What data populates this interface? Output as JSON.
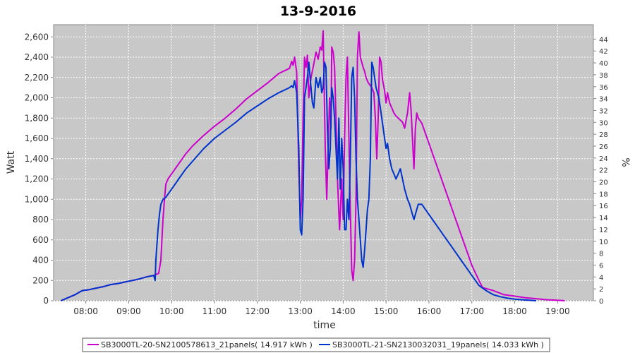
{
  "chart_data": {
    "type": "line",
    "title": "13-9-2016",
    "xlabel": "time",
    "ylabel": "Watt",
    "y2label": "%",
    "xlim": [
      "07:15",
      "19:50"
    ],
    "ylim": [
      0,
      2720
    ],
    "y2lim": [
      0,
      46.42
    ],
    "grid": true,
    "legend_position": "bottom",
    "x_ticks": [
      "08:00",
      "09:00",
      "10:00",
      "11:00",
      "12:00",
      "13:00",
      "14:00",
      "15:00",
      "16:00",
      "17:00",
      "18:00",
      "19:00"
    ],
    "y_ticks": [
      "0",
      "200",
      "400",
      "600",
      "800",
      "1,000",
      "1,200",
      "1,400",
      "1,600",
      "1,800",
      "2,000",
      "2,200",
      "2,400",
      "2,600"
    ],
    "y2_ticks": [
      "0",
      "2",
      "4",
      "6",
      "8",
      "10",
      "12",
      "14",
      "16",
      "18",
      "20",
      "22",
      "24",
      "26",
      "28",
      "30",
      "32",
      "34",
      "36",
      "38",
      "40",
      "42",
      "44"
    ],
    "series": [
      {
        "name": "SB3000TL-20-SN2100578613_21panels( 14.917 kWh )",
        "color": "#cc00cc",
        "points": [
          [
            "07:25",
            0
          ],
          [
            "07:35",
            30
          ],
          [
            "07:45",
            60
          ],
          [
            "07:55",
            100
          ],
          [
            "08:05",
            110
          ],
          [
            "08:15",
            125
          ],
          [
            "08:25",
            140
          ],
          [
            "08:35",
            160
          ],
          [
            "08:45",
            170
          ],
          [
            "08:55",
            185
          ],
          [
            "09:05",
            200
          ],
          [
            "09:15",
            215
          ],
          [
            "09:25",
            235
          ],
          [
            "09:35",
            250
          ],
          [
            "09:42",
            270
          ],
          [
            "09:45",
            400
          ],
          [
            "09:48",
            800
          ],
          [
            "09:50",
            1000
          ],
          [
            "09:52",
            1150
          ],
          [
            "09:55",
            1200
          ],
          [
            "10:00",
            1250
          ],
          [
            "10:10",
            1350
          ],
          [
            "10:20",
            1450
          ],
          [
            "10:30",
            1530
          ],
          [
            "10:45",
            1630
          ],
          [
            "11:00",
            1720
          ],
          [
            "11:15",
            1800
          ],
          [
            "11:30",
            1890
          ],
          [
            "11:45",
            1990
          ],
          [
            "12:00",
            2070
          ],
          [
            "12:15",
            2150
          ],
          [
            "12:30",
            2240
          ],
          [
            "12:45",
            2290
          ],
          [
            "12:48",
            2360
          ],
          [
            "12:50",
            2320
          ],
          [
            "12:52",
            2400
          ],
          [
            "12:55",
            2250
          ],
          [
            "12:58",
            1300
          ],
          [
            "13:00",
            800
          ],
          [
            "13:02",
            1000
          ],
          [
            "13:04",
            1800
          ],
          [
            "13:06",
            2400
          ],
          [
            "13:08",
            2300
          ],
          [
            "13:10",
            2420
          ],
          [
            "13:12",
            2000
          ],
          [
            "13:15",
            2200
          ],
          [
            "13:18",
            2300
          ],
          [
            "13:22",
            2450
          ],
          [
            "13:25",
            2380
          ],
          [
            "13:28",
            2500
          ],
          [
            "13:30",
            2470
          ],
          [
            "13:32",
            2660
          ],
          [
            "13:35",
            1500
          ],
          [
            "13:37",
            1000
          ],
          [
            "13:39",
            1500
          ],
          [
            "13:41",
            2000
          ],
          [
            "13:43",
            1700
          ],
          [
            "13:44",
            2500
          ],
          [
            "13:46",
            2450
          ],
          [
            "13:48",
            2300
          ],
          [
            "13:50",
            1800
          ],
          [
            "13:52",
            1200
          ],
          [
            "13:55",
            700
          ],
          [
            "13:58",
            1200
          ],
          [
            "14:00",
            800
          ],
          [
            "14:02",
            1600
          ],
          [
            "14:04",
            2200
          ],
          [
            "14:06",
            2400
          ],
          [
            "14:08",
            1600
          ],
          [
            "14:10",
            900
          ],
          [
            "14:12",
            300
          ],
          [
            "14:14",
            200
          ],
          [
            "14:16",
            400
          ],
          [
            "14:18",
            1000
          ],
          [
            "14:20",
            2400
          ],
          [
            "14:22",
            2650
          ],
          [
            "14:24",
            2400
          ],
          [
            "14:26",
            2350
          ],
          [
            "14:28",
            2300
          ],
          [
            "14:30",
            2260
          ],
          [
            "14:32",
            2200
          ],
          [
            "14:35",
            2150
          ],
          [
            "14:40",
            2100
          ],
          [
            "14:43",
            2050
          ],
          [
            "14:45",
            1800
          ],
          [
            "14:47",
            1400
          ],
          [
            "14:49",
            1800
          ],
          [
            "14:51",
            2400
          ],
          [
            "14:53",
            2350
          ],
          [
            "14:55",
            2180
          ],
          [
            "14:58",
            2070
          ],
          [
            "15:00",
            1950
          ],
          [
            "15:02",
            2050
          ],
          [
            "15:05",
            1950
          ],
          [
            "15:08",
            1900
          ],
          [
            "15:11",
            1850
          ],
          [
            "15:14",
            1820
          ],
          [
            "15:17",
            1800
          ],
          [
            "15:20",
            1780
          ],
          [
            "15:23",
            1760
          ],
          [
            "15:26",
            1700
          ],
          [
            "15:30",
            1850
          ],
          [
            "15:33",
            2050
          ],
          [
            "15:35",
            1880
          ],
          [
            "15:37",
            1600
          ],
          [
            "15:39",
            1300
          ],
          [
            "15:41",
            1700
          ],
          [
            "15:43",
            1850
          ],
          [
            "15:45",
            1800
          ],
          [
            "15:50",
            1750
          ],
          [
            "15:55",
            1650
          ],
          [
            "16:00",
            1550
          ],
          [
            "16:05",
            1450
          ],
          [
            "16:10",
            1350
          ],
          [
            "16:15",
            1250
          ],
          [
            "16:20",
            1150
          ],
          [
            "16:25",
            1050
          ],
          [
            "16:30",
            950
          ],
          [
            "16:35",
            850
          ],
          [
            "16:40",
            750
          ],
          [
            "16:45",
            650
          ],
          [
            "16:50",
            550
          ],
          [
            "16:55",
            450
          ],
          [
            "17:00",
            350
          ],
          [
            "17:10",
            200
          ],
          [
            "17:15",
            130
          ],
          [
            "17:30",
            100
          ],
          [
            "17:45",
            60
          ],
          [
            "18:00",
            45
          ],
          [
            "18:15",
            30
          ],
          [
            "18:30",
            20
          ],
          [
            "18:45",
            10
          ],
          [
            "19:00",
            5
          ],
          [
            "19:10",
            0
          ]
        ]
      },
      {
        "name": "SB3000TL-21-SN2130032031_19panels( 14.033 kWh )",
        "color": "#0033cc",
        "points": [
          [
            "07:25",
            0
          ],
          [
            "07:35",
            30
          ],
          [
            "07:45",
            60
          ],
          [
            "07:55",
            100
          ],
          [
            "08:05",
            110
          ],
          [
            "08:15",
            125
          ],
          [
            "08:25",
            140
          ],
          [
            "08:35",
            160
          ],
          [
            "08:45",
            170
          ],
          [
            "08:55",
            185
          ],
          [
            "09:05",
            200
          ],
          [
            "09:15",
            215
          ],
          [
            "09:25",
            235
          ],
          [
            "09:35",
            250
          ],
          [
            "09:37",
            200
          ],
          [
            "09:38",
            400
          ],
          [
            "09:39",
            500
          ],
          [
            "09:41",
            700
          ],
          [
            "09:43",
            850
          ],
          [
            "09:45",
            950
          ],
          [
            "09:48",
            1000
          ],
          [
            "09:50",
            1010
          ],
          [
            "09:52",
            1020
          ],
          [
            "09:55",
            1050
          ],
          [
            "10:00",
            1100
          ],
          [
            "10:10",
            1200
          ],
          [
            "10:20",
            1300
          ],
          [
            "10:30",
            1380
          ],
          [
            "10:45",
            1500
          ],
          [
            "11:00",
            1600
          ],
          [
            "11:15",
            1680
          ],
          [
            "11:30",
            1760
          ],
          [
            "11:45",
            1850
          ],
          [
            "12:00",
            1920
          ],
          [
            "12:15",
            1990
          ],
          [
            "12:30",
            2050
          ],
          [
            "12:45",
            2100
          ],
          [
            "12:48",
            2120
          ],
          [
            "12:50",
            2100
          ],
          [
            "12:52",
            2170
          ],
          [
            "12:55",
            2050
          ],
          [
            "12:58",
            1500
          ],
          [
            "13:00",
            700
          ],
          [
            "13:02",
            650
          ],
          [
            "13:04",
            1000
          ],
          [
            "13:06",
            2000
          ],
          [
            "13:08",
            2100
          ],
          [
            "13:10",
            2200
          ],
          [
            "13:12",
            2350
          ],
          [
            "13:15",
            2100
          ],
          [
            "13:17",
            1950
          ],
          [
            "13:19",
            1900
          ],
          [
            "13:22",
            2200
          ],
          [
            "13:25",
            2100
          ],
          [
            "13:28",
            2200
          ],
          [
            "13:30",
            2050
          ],
          [
            "13:32",
            2100
          ],
          [
            "13:34",
            2350
          ],
          [
            "13:36",
            2300
          ],
          [
            "13:38",
            1700
          ],
          [
            "13:40",
            1300
          ],
          [
            "13:42",
            1500
          ],
          [
            "13:44",
            2100
          ],
          [
            "13:46",
            2000
          ],
          [
            "13:48",
            1800
          ],
          [
            "13:50",
            1500
          ],
          [
            "13:52",
            1200
          ],
          [
            "13:54",
            1800
          ],
          [
            "13:56",
            1100
          ],
          [
            "13:58",
            1600
          ],
          [
            "14:00",
            1300
          ],
          [
            "14:02",
            700
          ],
          [
            "14:04",
            700
          ],
          [
            "14:06",
            1000
          ],
          [
            "14:08",
            800
          ],
          [
            "14:10",
            1400
          ],
          [
            "14:12",
            2200
          ],
          [
            "14:14",
            2300
          ],
          [
            "14:16",
            2000
          ],
          [
            "14:18",
            1400
          ],
          [
            "14:20",
            1000
          ],
          [
            "14:22",
            800
          ],
          [
            "14:24",
            600
          ],
          [
            "14:26",
            400
          ],
          [
            "14:28",
            330
          ],
          [
            "14:30",
            500
          ],
          [
            "14:32",
            700
          ],
          [
            "14:34",
            900
          ],
          [
            "14:36",
            1000
          ],
          [
            "14:38",
            1400
          ],
          [
            "14:40",
            2350
          ],
          [
            "14:42",
            2300
          ],
          [
            "14:44",
            2200
          ],
          [
            "14:46",
            2100
          ],
          [
            "14:48",
            2050
          ],
          [
            "14:50",
            2000
          ],
          [
            "14:52",
            1900
          ],
          [
            "14:54",
            1800
          ],
          [
            "14:56",
            1700
          ],
          [
            "14:58",
            1600
          ],
          [
            "15:00",
            1500
          ],
          [
            "15:02",
            1550
          ],
          [
            "15:05",
            1400
          ],
          [
            "15:08",
            1300
          ],
          [
            "15:11",
            1250
          ],
          [
            "15:14",
            1200
          ],
          [
            "15:17",
            1250
          ],
          [
            "15:20",
            1300
          ],
          [
            "15:23",
            1200
          ],
          [
            "15:26",
            1100
          ],
          [
            "15:30",
            1000
          ],
          [
            "15:33",
            950
          ],
          [
            "15:35",
            900
          ],
          [
            "15:37",
            850
          ],
          [
            "15:39",
            800
          ],
          [
            "15:41",
            850
          ],
          [
            "15:43",
            900
          ],
          [
            "15:45",
            950
          ],
          [
            "15:50",
            950
          ],
          [
            "15:55",
            900
          ],
          [
            "16:00",
            850
          ],
          [
            "16:05",
            800
          ],
          [
            "16:10",
            750
          ],
          [
            "16:15",
            700
          ],
          [
            "16:20",
            650
          ],
          [
            "16:25",
            600
          ],
          [
            "16:30",
            550
          ],
          [
            "16:35",
            500
          ],
          [
            "16:40",
            450
          ],
          [
            "16:45",
            400
          ],
          [
            "16:50",
            350
          ],
          [
            "16:55",
            300
          ],
          [
            "17:00",
            250
          ],
          [
            "17:10",
            150
          ],
          [
            "17:20",
            100
          ],
          [
            "17:30",
            60
          ],
          [
            "17:40",
            40
          ],
          [
            "17:50",
            25
          ],
          [
            "18:00",
            15
          ],
          [
            "18:10",
            10
          ],
          [
            "18:20",
            5
          ],
          [
            "18:30",
            0
          ]
        ]
      }
    ]
  }
}
